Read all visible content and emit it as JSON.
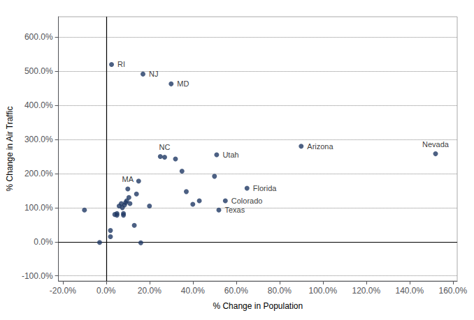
{
  "chart_data": {
    "type": "scatter",
    "xlabel": "% Change in Population",
    "ylabel": "% Change in Air Traffic",
    "color": "#1F3864",
    "x": [
      -10.0,
      -3.0,
      2.0,
      2.0,
      2.5,
      4.0,
      5.0,
      5.0,
      6.0,
      7.0,
      7.5,
      8.0,
      8.0,
      8.5,
      9.0,
      9.5,
      10.0,
      10.5,
      11.0,
      13.0,
      14.0,
      15.0,
      16.0,
      17.0,
      20.0,
      25.0,
      27.0,
      30.0,
      32.0,
      35.0,
      37.0,
      40.0,
      43.0,
      50.0,
      51.0,
      52.0,
      55.0,
      65.0,
      90.0,
      152.0
    ],
    "values": [
      93.0,
      -2.0,
      15.0,
      33.0,
      520.0,
      80.0,
      78.0,
      83.0,
      105.0,
      112.0,
      100.0,
      78.0,
      83.0,
      108.0,
      115.0,
      120.0,
      155.0,
      130.0,
      112.0,
      48.0,
      140.0,
      178.0,
      -3.0,
      492.0,
      105.0,
      250.0,
      248.0,
      463.0,
      243.0,
      207.0,
      147.0,
      110.0,
      120.0,
      192.0,
      255.0,
      93.0,
      120.0,
      157.0,
      280.0,
      258.0
    ],
    "point_labels": [
      null,
      null,
      null,
      null,
      "RI",
      null,
      null,
      null,
      null,
      null,
      null,
      null,
      null,
      null,
      null,
      null,
      "MA",
      null,
      null,
      null,
      null,
      null,
      null,
      "NJ",
      null,
      null,
      "NC",
      "MD",
      null,
      null,
      null,
      null,
      null,
      null,
      "Utah",
      "Texas",
      "Colorado",
      "Florida",
      "Arizona",
      "Nevada"
    ],
    "xlim": [
      -22,
      162
    ],
    "ylim": [
      -115,
      660
    ],
    "xticks": [
      {
        "value": -20,
        "label": "-20.0%"
      },
      {
        "value": 0,
        "label": "0.0%"
      },
      {
        "value": 20,
        "label": "20.0%"
      },
      {
        "value": 40,
        "label": "40.0%"
      },
      {
        "value": 60,
        "label": "60.0%"
      },
      {
        "value": 80,
        "label": "80.0%"
      },
      {
        "value": 100,
        "label": "100.0%"
      },
      {
        "value": 120,
        "label": "120.0%"
      },
      {
        "value": 140,
        "label": "140.0%"
      },
      {
        "value": 160,
        "label": "160.0%"
      }
    ],
    "yticks": [
      {
        "value": -100,
        "label": "-100.0%"
      },
      {
        "value": 0,
        "label": "0.0%"
      },
      {
        "value": 100,
        "label": "100.0%"
      },
      {
        "value": 200,
        "label": "200.0%"
      },
      {
        "value": 300,
        "label": "300.0%"
      },
      {
        "value": 400,
        "label": "400.0%"
      },
      {
        "value": 500,
        "label": "500.0%"
      },
      {
        "value": 600,
        "label": "600.0%"
      }
    ],
    "grid": "y"
  }
}
